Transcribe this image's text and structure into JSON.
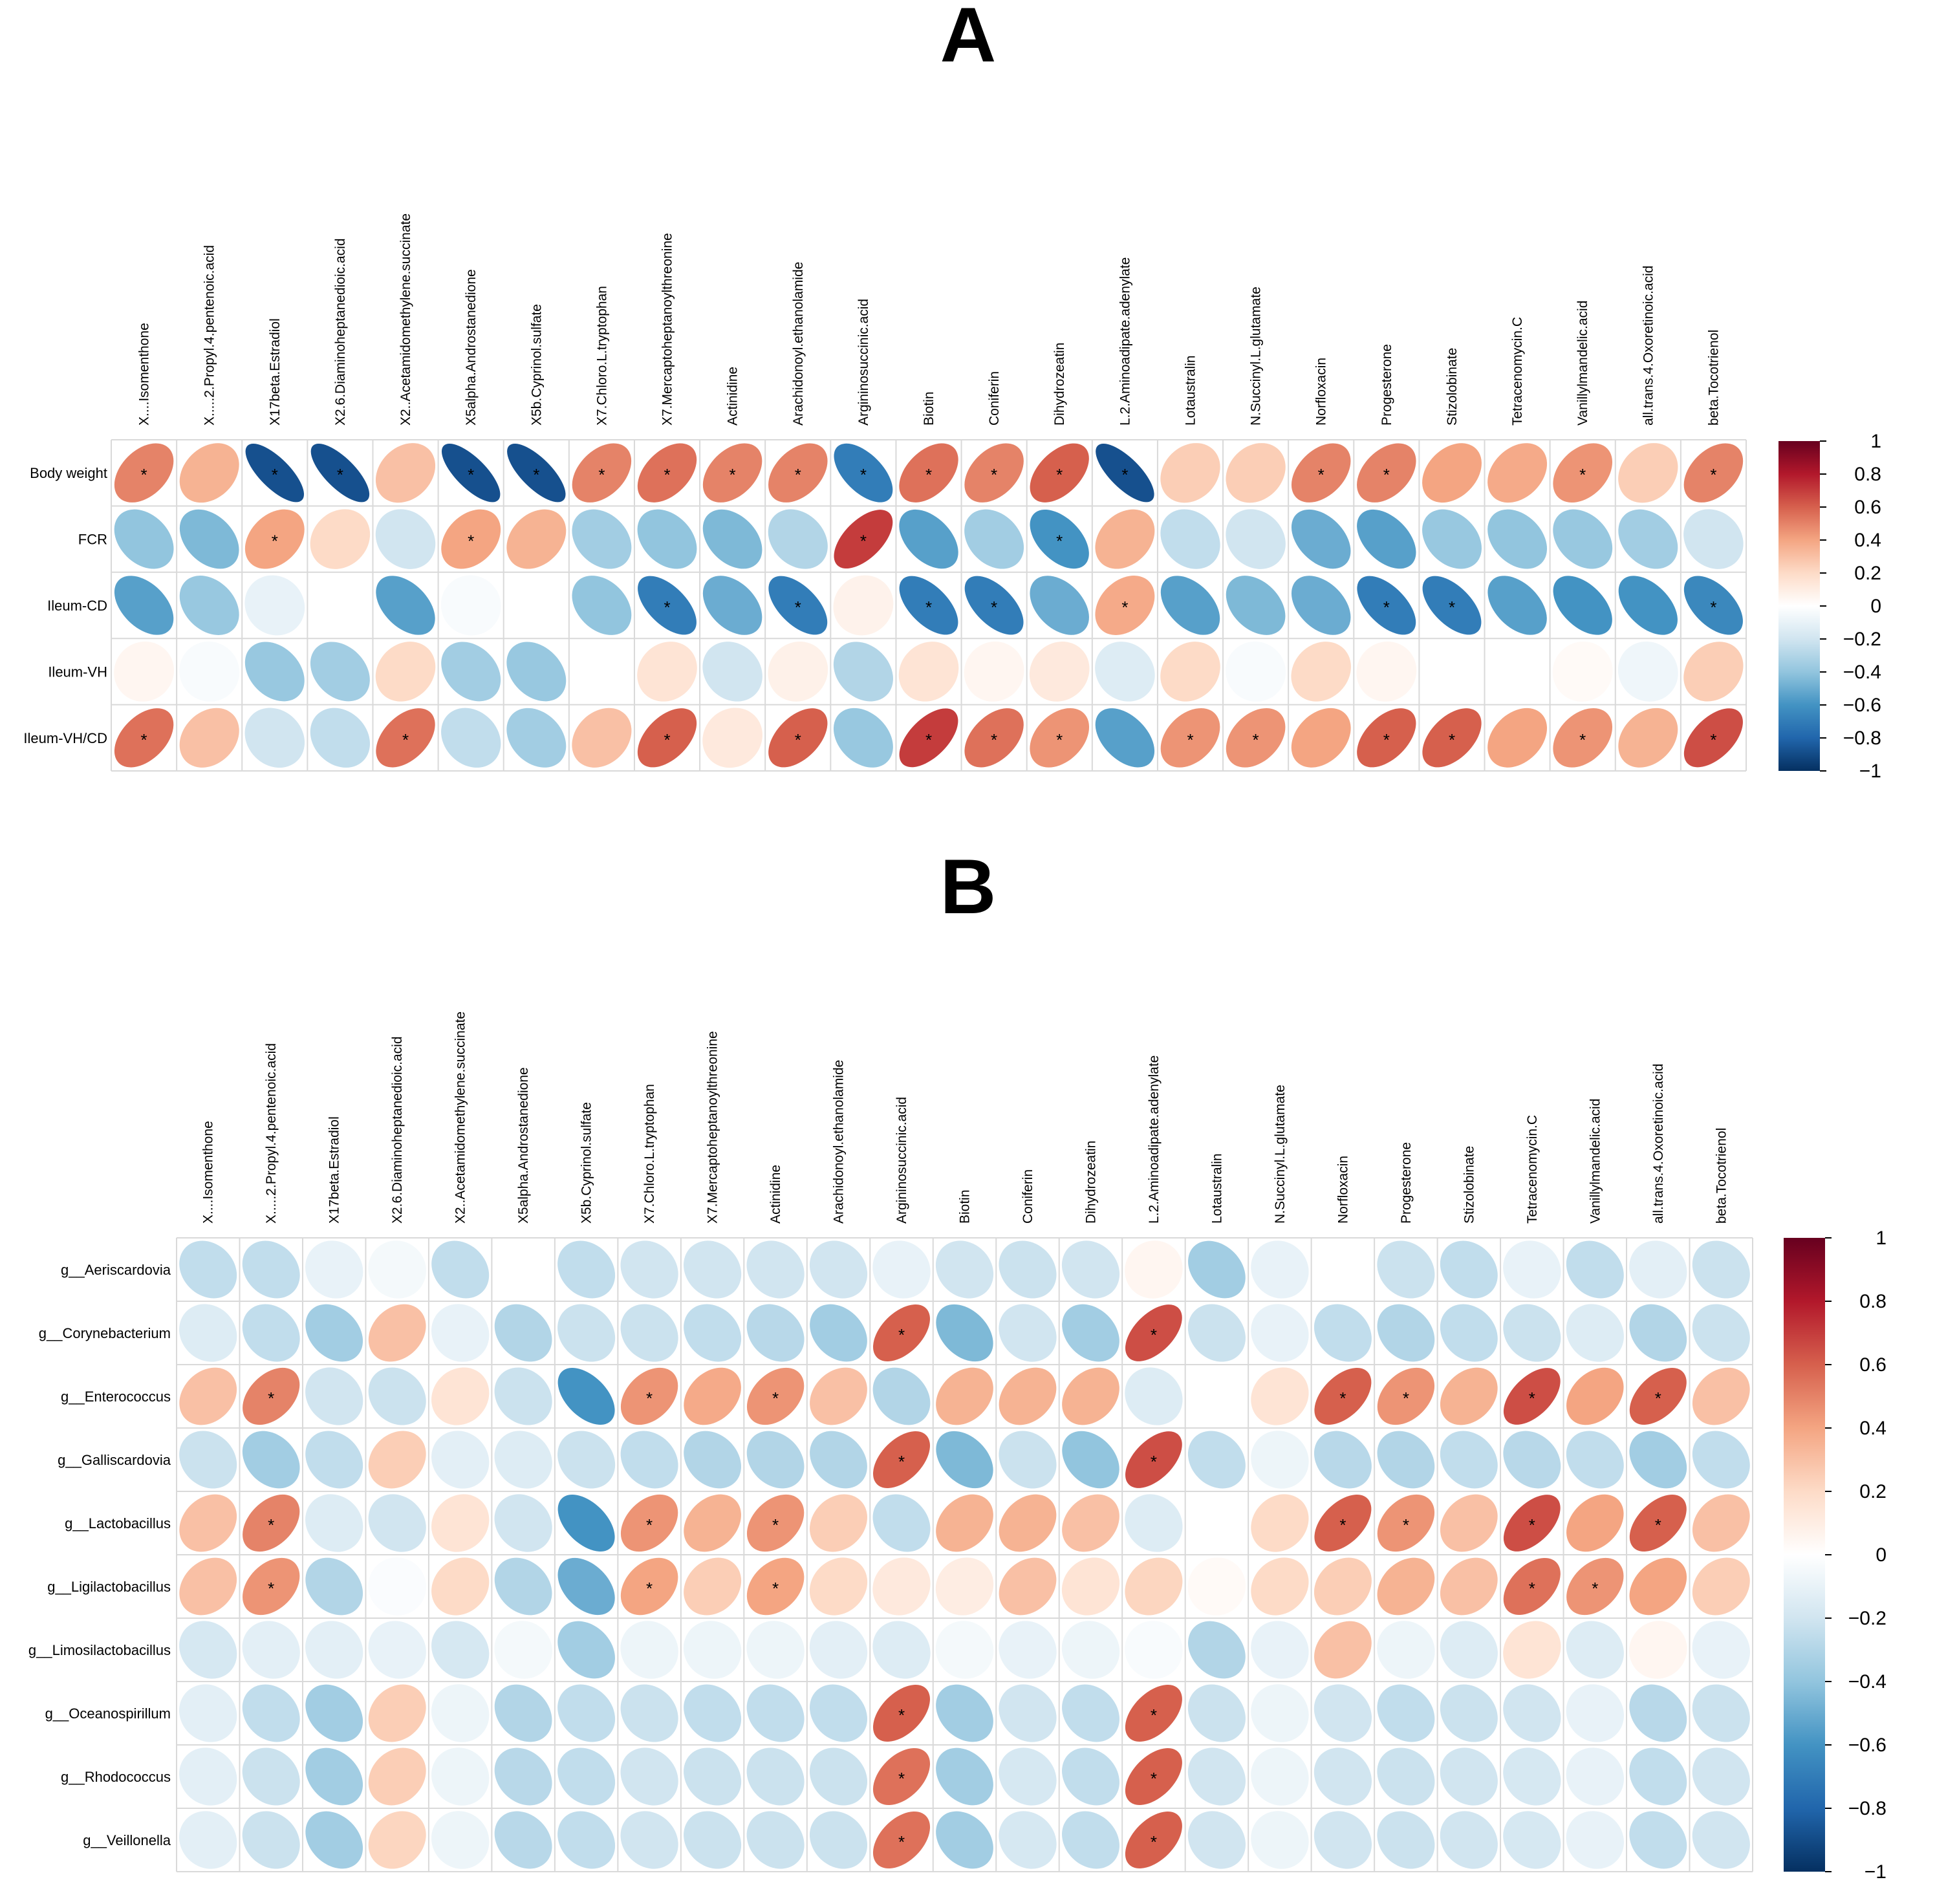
{
  "chart_data": [
    {
      "type": "heatmap",
      "panel_label": "A",
      "columns": [
        "X....Isomenthone",
        "X.....2.Propyl.4.pentenoic.acid",
        "X17beta.Estradiol",
        "X2.6.Diaminoheptanedioic.acid",
        "X2..Acetamidomethylene.succinate",
        "X5alpha.Androstanedione",
        "X5b.Cyprinol.sulfate",
        "X7.Chloro.L.tryptophan",
        "X7.Mercaptoheptanoylthreonine",
        "Actinidine",
        "Arachidonoyl.ethanolamide",
        "Argininosuccinic.acid",
        "Biotin",
        "Coniferin",
        "Dihydrozeatin",
        "L.2.Aminoadipate.adenylate",
        "Lotaustralin",
        "N.Succinyl.L.glutamate",
        "Norfloxacin",
        "Progesterone",
        "Stizolobinate",
        "Tetracenomycin.C",
        "Vanillylmandelic.acid",
        "all.trans.4.Oxoretinoic.acid",
        "beta.Tocotrienol"
      ],
      "rows": [
        "Body weight",
        "FCR",
        "Ileum-CD",
        "Ileum-VH",
        "Ileum-VH/CD"
      ],
      "values": [
        [
          0.5,
          0.35,
          -0.88,
          -0.88,
          0.3,
          -0.88,
          -0.88,
          0.5,
          0.55,
          0.5,
          0.5,
          -0.7,
          0.55,
          0.5,
          0.6,
          -0.88,
          0.25,
          0.25,
          0.5,
          0.5,
          0.4,
          0.38,
          0.45,
          0.25,
          0.5
        ],
        [
          -0.4,
          -0.45,
          0.4,
          0.2,
          -0.2,
          0.4,
          0.35,
          -0.35,
          -0.4,
          -0.45,
          -0.3,
          0.7,
          -0.55,
          -0.35,
          -0.6,
          0.35,
          -0.25,
          -0.2,
          -0.5,
          -0.55,
          -0.38,
          -0.4,
          -0.38,
          -0.35,
          -0.2
        ],
        [
          -0.55,
          -0.38,
          -0.1,
          0.0,
          -0.55,
          -0.03,
          0.0,
          -0.4,
          -0.7,
          -0.5,
          -0.7,
          0.07,
          -0.7,
          -0.7,
          -0.5,
          0.38,
          -0.55,
          -0.45,
          -0.5,
          -0.7,
          -0.7,
          -0.55,
          -0.6,
          -0.6,
          -0.65
        ],
        [
          0.05,
          -0.03,
          -0.38,
          -0.35,
          0.2,
          -0.35,
          -0.38,
          0.0,
          0.15,
          -0.2,
          0.08,
          -0.3,
          0.15,
          0.05,
          0.12,
          -0.15,
          0.2,
          -0.03,
          0.2,
          0.05,
          0.0,
          0.0,
          0.03,
          -0.07,
          0.25
        ],
        [
          0.55,
          0.3,
          -0.2,
          -0.25,
          0.55,
          -0.25,
          -0.35,
          0.3,
          0.6,
          0.12,
          0.6,
          -0.38,
          0.7,
          0.55,
          0.45,
          -0.55,
          0.45,
          0.45,
          0.4,
          0.6,
          0.6,
          0.4,
          0.45,
          0.35,
          0.65
        ]
      ],
      "significant": [
        [
          1,
          0,
          1,
          1,
          0,
          1,
          1,
          1,
          1,
          1,
          1,
          1,
          1,
          1,
          1,
          1,
          0,
          0,
          1,
          1,
          0,
          0,
          1,
          0,
          1
        ],
        [
          0,
          0,
          1,
          0,
          0,
          1,
          0,
          0,
          0,
          0,
          0,
          1,
          0,
          0,
          1,
          0,
          0,
          0,
          0,
          0,
          0,
          0,
          0,
          0,
          0
        ],
        [
          0,
          0,
          0,
          0,
          0,
          0,
          0,
          0,
          1,
          0,
          1,
          0,
          1,
          1,
          0,
          1,
          0,
          0,
          0,
          1,
          1,
          0,
          0,
          0,
          1
        ],
        [
          0,
          0,
          0,
          0,
          0,
          0,
          0,
          0,
          0,
          0,
          0,
          0,
          0,
          0,
          0,
          0,
          0,
          0,
          0,
          0,
          0,
          0,
          0,
          0,
          0
        ],
        [
          1,
          0,
          0,
          0,
          1,
          0,
          0,
          0,
          1,
          0,
          1,
          0,
          1,
          1,
          1,
          0,
          1,
          1,
          0,
          1,
          1,
          0,
          1,
          0,
          1
        ]
      ],
      "colorbar_ticks": [
        "1",
        "0.8",
        "0.6",
        "0.4",
        "0.2",
        "0",
        "−0.2",
        "−0.4",
        "−0.6",
        "−0.8",
        "−1"
      ],
      "range": [
        -1,
        1
      ],
      "sig_marker": "*"
    },
    {
      "type": "heatmap",
      "panel_label": "B",
      "columns": [
        "X....Isomenthone",
        "X.....2.Propyl.4.pentenoic.acid",
        "X17beta.Estradiol",
        "X2.6.Diaminoheptanedioic.acid",
        "X2..Acetamidomethylene.succinate",
        "X5alpha.Androstanedione",
        "X5b.Cyprinol.sulfate",
        "X7.Chloro.L.tryptophan",
        "X7.Mercaptoheptanoylthreonine",
        "Actinidine",
        "Arachidonoyl.ethanolamide",
        "Argininosuccinic.acid",
        "Biotin",
        "Coniferin",
        "Dihydrozeatin",
        "L.2.Aminoadipate.adenylate",
        "Lotaustralin",
        "N.Succinyl.L.glutamate",
        "Norfloxacin",
        "Progesterone",
        "Stizolobinate",
        "Tetracenomycin.C",
        "Vanillylmandelic.acid",
        "all.trans.4.Oxoretinoic.acid",
        "beta.Tocotrienol"
      ],
      "rows": [
        "g__Aeriscardovia",
        "g__Corynebacterium",
        "g__Enterococcus",
        "g__Galliscardovia",
        "g__Lactobacillus",
        "g__Ligilactobacillus",
        "g__Limosilactobacillus",
        "g__Oceanospirillum",
        "g__Rhodococcus",
        "g__Veillonella"
      ],
      "values": [
        [
          -0.25,
          -0.25,
          -0.1,
          -0.05,
          -0.25,
          0.0,
          -0.25,
          -0.2,
          -0.2,
          -0.2,
          -0.2,
          -0.1,
          -0.2,
          -0.22,
          -0.2,
          0.05,
          -0.35,
          -0.1,
          0.0,
          -0.22,
          -0.25,
          -0.1,
          -0.25,
          -0.12,
          -0.22
        ],
        [
          -0.15,
          -0.25,
          -0.35,
          0.3,
          -0.1,
          -0.3,
          -0.22,
          -0.22,
          -0.25,
          -0.28,
          -0.35,
          0.6,
          -0.45,
          -0.2,
          -0.35,
          0.65,
          -0.22,
          -0.1,
          -0.25,
          -0.3,
          -0.25,
          -0.22,
          -0.15,
          -0.3,
          -0.22
        ],
        [
          0.3,
          0.5,
          -0.2,
          -0.22,
          0.15,
          -0.22,
          -0.6,
          0.45,
          0.38,
          0.45,
          0.3,
          -0.3,
          0.35,
          0.35,
          0.35,
          -0.15,
          0.0,
          0.15,
          0.6,
          0.45,
          0.35,
          0.65,
          0.4,
          0.6,
          0.3
        ],
        [
          -0.22,
          -0.35,
          -0.25,
          0.25,
          -0.12,
          -0.15,
          -0.22,
          -0.25,
          -0.3,
          -0.3,
          -0.3,
          0.6,
          -0.45,
          -0.22,
          -0.4,
          0.65,
          -0.25,
          -0.08,
          -0.28,
          -0.3,
          -0.25,
          -0.28,
          -0.25,
          -0.35,
          -0.25
        ],
        [
          0.3,
          0.5,
          -0.15,
          -0.2,
          0.15,
          -0.2,
          -0.6,
          0.45,
          0.35,
          0.45,
          0.25,
          -0.25,
          0.35,
          0.35,
          0.3,
          -0.15,
          0.0,
          0.2,
          0.6,
          0.45,
          0.3,
          0.65,
          0.4,
          0.6,
          0.3
        ],
        [
          0.3,
          0.45,
          -0.3,
          -0.02,
          0.2,
          -0.3,
          -0.5,
          0.4,
          0.25,
          0.4,
          0.2,
          0.12,
          0.1,
          0.3,
          0.15,
          0.22,
          0.03,
          0.2,
          0.25,
          0.35,
          0.3,
          0.55,
          0.45,
          0.4,
          0.25
        ],
        [
          -0.18,
          -0.12,
          -0.12,
          -0.1,
          -0.18,
          -0.05,
          -0.35,
          -0.08,
          -0.08,
          -0.08,
          -0.12,
          -0.15,
          -0.05,
          -0.1,
          -0.08,
          -0.03,
          -0.3,
          -0.1,
          0.3,
          -0.08,
          -0.15,
          0.15,
          -0.15,
          0.05,
          -0.1
        ],
        [
          -0.12,
          -0.25,
          -0.35,
          0.25,
          -0.08,
          -0.3,
          -0.25,
          -0.22,
          -0.25,
          -0.25,
          -0.25,
          0.6,
          -0.35,
          -0.2,
          -0.25,
          0.6,
          -0.22,
          -0.08,
          -0.2,
          -0.25,
          -0.22,
          -0.2,
          -0.1,
          -0.28,
          -0.22
        ],
        [
          -0.12,
          -0.22,
          -0.35,
          0.25,
          -0.08,
          -0.28,
          -0.25,
          -0.2,
          -0.22,
          -0.22,
          -0.22,
          0.55,
          -0.35,
          -0.18,
          -0.25,
          0.6,
          -0.2,
          -0.08,
          -0.2,
          -0.22,
          -0.2,
          -0.18,
          -0.1,
          -0.25,
          -0.2
        ],
        [
          -0.12,
          -0.22,
          -0.35,
          0.22,
          -0.08,
          -0.28,
          -0.25,
          -0.2,
          -0.22,
          -0.22,
          -0.22,
          0.55,
          -0.35,
          -0.18,
          -0.25,
          0.6,
          -0.2,
          -0.08,
          -0.2,
          -0.22,
          -0.2,
          -0.18,
          -0.1,
          -0.25,
          -0.2
        ]
      ],
      "significant": [
        [
          0,
          0,
          0,
          0,
          0,
          0,
          0,
          0,
          0,
          0,
          0,
          0,
          0,
          0,
          0,
          0,
          0,
          0,
          0,
          0,
          0,
          0,
          0,
          0,
          0
        ],
        [
          0,
          0,
          0,
          0,
          0,
          0,
          0,
          0,
          0,
          0,
          0,
          1,
          0,
          0,
          0,
          1,
          0,
          0,
          0,
          0,
          0,
          0,
          0,
          0,
          0
        ],
        [
          0,
          1,
          0,
          0,
          0,
          0,
          0,
          1,
          0,
          1,
          0,
          0,
          0,
          0,
          0,
          0,
          0,
          0,
          1,
          1,
          0,
          1,
          0,
          1,
          0
        ],
        [
          0,
          0,
          0,
          0,
          0,
          0,
          0,
          0,
          0,
          0,
          0,
          1,
          0,
          0,
          0,
          1,
          0,
          0,
          0,
          0,
          0,
          0,
          0,
          0,
          0
        ],
        [
          0,
          1,
          0,
          0,
          0,
          0,
          0,
          1,
          0,
          1,
          0,
          0,
          0,
          0,
          0,
          0,
          0,
          0,
          1,
          1,
          0,
          1,
          0,
          1,
          0
        ],
        [
          0,
          1,
          0,
          0,
          0,
          0,
          0,
          1,
          0,
          1,
          0,
          0,
          0,
          0,
          0,
          0,
          0,
          0,
          0,
          0,
          0,
          1,
          1,
          0,
          0
        ],
        [
          0,
          0,
          0,
          0,
          0,
          0,
          0,
          0,
          0,
          0,
          0,
          0,
          0,
          0,
          0,
          0,
          0,
          0,
          0,
          0,
          0,
          0,
          0,
          0,
          0
        ],
        [
          0,
          0,
          0,
          0,
          0,
          0,
          0,
          0,
          0,
          0,
          0,
          1,
          0,
          0,
          0,
          1,
          0,
          0,
          0,
          0,
          0,
          0,
          0,
          0,
          0
        ],
        [
          0,
          0,
          0,
          0,
          0,
          0,
          0,
          0,
          0,
          0,
          0,
          1,
          0,
          0,
          0,
          1,
          0,
          0,
          0,
          0,
          0,
          0,
          0,
          0,
          0
        ],
        [
          0,
          0,
          0,
          0,
          0,
          0,
          0,
          0,
          0,
          0,
          0,
          1,
          0,
          0,
          0,
          1,
          0,
          0,
          0,
          0,
          0,
          0,
          0,
          0,
          0
        ]
      ],
      "colorbar_ticks": [
        "1",
        "0.8",
        "0.6",
        "0.4",
        "0.2",
        "0",
        "−0.2",
        "−0.4",
        "−0.6",
        "−0.8",
        "−1"
      ],
      "range": [
        -1,
        1
      ],
      "sig_marker": "*"
    }
  ]
}
